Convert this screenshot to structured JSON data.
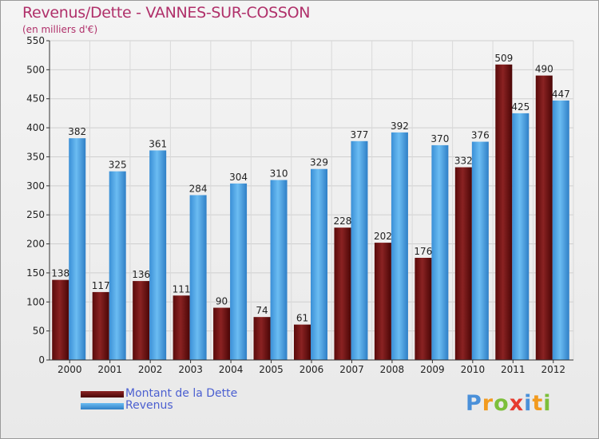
{
  "header": {
    "title": "Revenus/Dette - VANNES-SUR-COSSON",
    "subtitle": "(en milliers d'€)"
  },
  "legend": {
    "items": [
      {
        "label": "Montant de la Dette",
        "color": "#6b0f0f"
      },
      {
        "label": "Revenus",
        "color": "#4aa3e8"
      }
    ]
  },
  "logo": {
    "letters": [
      {
        "ch": "P",
        "color": "#4a90d9"
      },
      {
        "ch": "r",
        "color": "#f29a1e"
      },
      {
        "ch": "o",
        "color": "#7cbf3a"
      },
      {
        "ch": "x",
        "color": "#e63b2e"
      },
      {
        "ch": "i",
        "color": "#4a90d9"
      },
      {
        "ch": "t",
        "color": "#f29a1e"
      },
      {
        "ch": "i",
        "color": "#7cbf3a"
      }
    ]
  },
  "chart_data": {
    "type": "bar",
    "title": "Revenus/Dette - VANNES-SUR-COSSON",
    "ylabel": "(en milliers d'€)",
    "xlabel": "",
    "categories": [
      "2000",
      "2001",
      "2002",
      "2003",
      "2004",
      "2005",
      "2006",
      "2007",
      "2008",
      "2009",
      "2010",
      "2011",
      "2012"
    ],
    "series": [
      {
        "name": "Montant de la Dette",
        "color": "#6b0f0f",
        "values": [
          138,
          117,
          136,
          111,
          90,
          74,
          61,
          228,
          202,
          176,
          332,
          509,
          490
        ]
      },
      {
        "name": "Revenus",
        "color": "#4aa3e8",
        "values": [
          382,
          325,
          361,
          284,
          304,
          310,
          329,
          377,
          392,
          370,
          376,
          425,
          447
        ]
      }
    ],
    "ylim": [
      0,
      550
    ],
    "yticks": [
      0,
      50,
      100,
      150,
      200,
      250,
      300,
      350,
      400,
      450,
      500,
      550
    ],
    "grid": true
  }
}
